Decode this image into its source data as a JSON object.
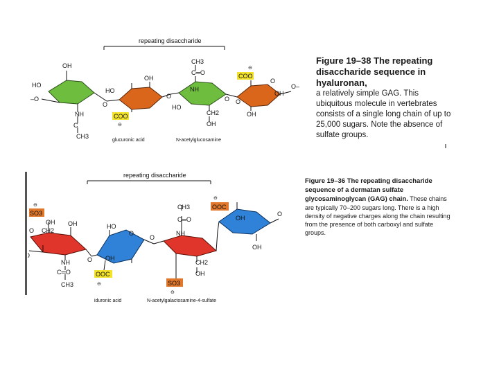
{
  "figure1": {
    "bracket_label": "repeating disaccharide",
    "caption_title": "Figure 19–38 The repeating disaccharide sequence in hyaluronan,",
    "caption_body": "a relatively simple GAG. This ubiquitous molecule in vertebrates consists of a single long chain of up to 25,000 sugars. Note the absence of sulfate groups.",
    "sugar_labels": [
      "glucuronic acid",
      "N-acetylglucosamine"
    ],
    "groups": {
      "oh": "OH",
      "ho": "HO",
      "o": "O",
      "o_dash": "–O",
      "o_trail": "O–",
      "nh": "NH",
      "co": "C═O",
      "c": "C",
      "ch3": "CH3",
      "ch2": "CH2",
      "coo": "COO",
      "minus": "⊖"
    }
  },
  "figure2": {
    "bracket_label": "repeating disaccharide",
    "caption_title": "Figure 19–36 The repeating disaccharide sequence of a dermatan sulfate glycosaminoglycan (GAG) chain.",
    "caption_body": "These chains are typically 70–200 sugars long. There is a high density of negative charges along the chain resulting from the presence of both carboxyl and sulfate groups.",
    "sugar_labels": [
      "iduronic acid",
      "N-acetylgalactosamine-4-sulfate"
    ],
    "groups": {
      "oh": "OH",
      "ho": "HO",
      "o": "O",
      "o_dash": "O",
      "o_trail": "O",
      "nh": "NH",
      "co": "C═O",
      "ch3": "CH3",
      "ch2": "CH2",
      "ooc": "OOC",
      "so3": "SO3",
      "minus": "⊖"
    }
  },
  "colors": {
    "green": "#6fbd3f",
    "orange": "#d9661a",
    "red": "#e0352a",
    "blue": "#2f82d8",
    "yellow": "#f2e22a",
    "orange_box": "#e0772a"
  }
}
